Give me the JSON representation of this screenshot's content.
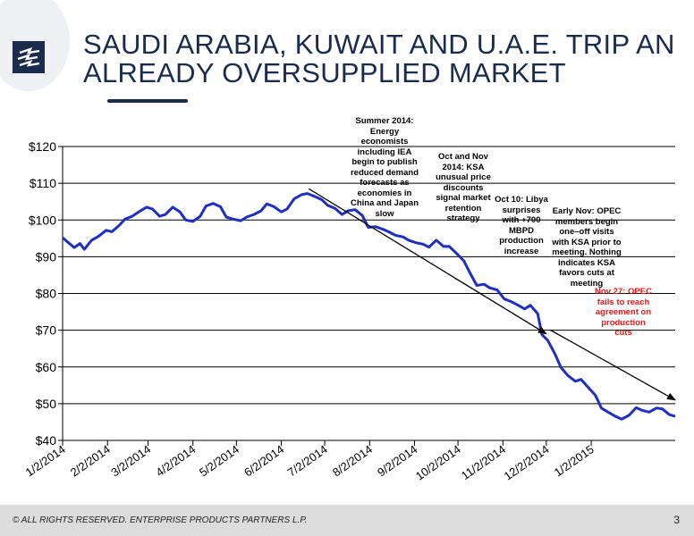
{
  "title": "SAUDI ARABIA, KUWAIT AND U.A.E. TRIP AN ALREADY OVERSUPPLIED MARKET",
  "footer": {
    "copyright": "© ALL RIGHTS RESERVED. ENTERPRISE PRODUCTS PARTNERS L.P.",
    "page_number": "3"
  },
  "colors": {
    "series": "#1f2fbf",
    "title": "#1a2b4c",
    "highlight": "#e01b1b"
  },
  "chart_data": {
    "type": "line",
    "title": "",
    "xlabel": "",
    "ylabel": "",
    "ylim": [
      40,
      120
    ],
    "yticks": [
      40,
      50,
      60,
      70,
      80,
      90,
      100,
      110,
      120
    ],
    "ytick_labels": [
      "$40",
      "$50",
      "$60",
      "$70",
      "$80",
      "$90",
      "$100",
      "$110",
      "$120"
    ],
    "xlim": [
      "2014-01-02",
      "2015-03-01"
    ],
    "xticks": [
      "2014-01-02",
      "2014-02-02",
      "2014-03-02",
      "2014-04-02",
      "2014-05-02",
      "2014-06-02",
      "2014-07-02",
      "2014-08-02",
      "2014-09-02",
      "2014-10-02",
      "2014-11-02",
      "2014-12-02",
      "2015-01-02"
    ],
    "xtick_labels": [
      "1/2/2014",
      "2/2/2014",
      "3/2/2014",
      "4/2/2014",
      "5/2/2014",
      "6/2/2014",
      "7/2/2014",
      "8/2/2014",
      "9/2/2014",
      "10/2/2014",
      "11/2/2014",
      "12/2/2014",
      "1/2/2015"
    ],
    "grid": "horizontal",
    "series": [
      {
        "x": [
          "2014-01-02",
          "2014-01-06",
          "2014-01-10",
          "2014-01-14",
          "2014-01-17",
          "2014-01-22",
          "2014-01-27",
          "2014-02-01",
          "2014-02-05",
          "2014-02-10",
          "2014-02-14",
          "2014-02-19",
          "2014-02-24",
          "2014-03-01",
          "2014-03-05",
          "2014-03-10",
          "2014-03-14",
          "2014-03-19",
          "2014-03-24",
          "2014-03-28",
          "2014-04-02",
          "2014-04-07",
          "2014-04-11",
          "2014-04-16",
          "2014-04-21",
          "2014-04-25",
          "2014-04-30",
          "2014-05-05",
          "2014-05-09",
          "2014-05-14",
          "2014-05-19",
          "2014-05-23",
          "2014-05-28",
          "2014-06-02",
          "2014-06-06",
          "2014-06-11",
          "2014-06-16",
          "2014-06-20",
          "2014-06-25",
          "2014-06-30",
          "2014-07-04",
          "2014-07-09",
          "2014-07-14",
          "2014-07-18",
          "2014-07-23",
          "2014-07-28",
          "2014-08-01",
          "2014-08-06",
          "2014-08-11",
          "2014-08-15",
          "2014-08-20",
          "2014-08-25",
          "2014-08-29",
          "2014-09-03",
          "2014-09-08",
          "2014-09-12",
          "2014-09-17",
          "2014-09-22",
          "2014-09-26",
          "2014-10-01",
          "2014-10-06",
          "2014-10-10",
          "2014-10-15",
          "2014-10-20",
          "2014-10-24",
          "2014-10-29",
          "2014-11-03",
          "2014-11-07",
          "2014-11-12",
          "2014-11-17",
          "2014-11-21",
          "2014-11-26",
          "2014-11-29",
          "2014-12-03",
          "2014-12-08",
          "2014-12-12",
          "2014-12-17",
          "2014-12-22",
          "2014-12-26",
          "2014-12-31",
          "2015-01-05",
          "2015-01-09",
          "2015-01-14",
          "2015-01-19",
          "2015-01-23",
          "2015-01-28",
          "2015-02-02",
          "2015-02-06",
          "2015-02-11",
          "2015-02-16",
          "2015-02-20",
          "2015-02-25",
          "2015-03-01"
        ],
        "y": [
          95.2,
          93.8,
          92.5,
          93.6,
          92.0,
          94.5,
          95.6,
          97.2,
          96.8,
          98.5,
          100.2,
          101.0,
          102.3,
          103.5,
          103.0,
          101.0,
          101.5,
          103.5,
          102.2,
          100.0,
          99.6,
          101.0,
          103.8,
          104.5,
          103.6,
          100.8,
          100.2,
          99.8,
          100.8,
          101.5,
          102.5,
          104.4,
          103.6,
          102.2,
          103.0,
          105.8,
          106.9,
          107.2,
          106.4,
          105.5,
          104.0,
          103.2,
          101.5,
          102.5,
          102.8,
          101.2,
          98.0,
          98.2,
          97.5,
          96.8,
          95.8,
          95.4,
          94.5,
          93.8,
          93.4,
          92.6,
          94.5,
          92.8,
          92.8,
          90.9,
          88.9,
          85.8,
          82.2,
          82.5,
          81.5,
          81.0,
          78.5,
          77.9,
          76.9,
          75.8,
          76.8,
          74.5,
          68.8,
          67.2,
          63.5,
          59.9,
          57.6,
          56.1,
          56.6,
          54.4,
          52.2,
          48.8,
          47.6,
          46.5,
          45.8,
          46.8,
          48.9,
          48.2,
          47.7,
          48.8,
          48.6,
          47.0,
          46.6
        ]
      }
    ],
    "annotations": [
      {
        "text": "Summer 2014: Energy economists including IEA begin to publish reduced demand forecasts as economies in China and Japan slow"
      },
      {
        "text": "Oct and Nov 2014: KSA unusual price discounts signal market retention strategy"
      },
      {
        "text": "Oct 10: Libya surprises with +700 MBPD production increase"
      },
      {
        "text": "Early Nov: OPEC members begin one–off visits with KSA prior to meeting. Nothing indicates KSA favors cuts at meeting"
      },
      {
        "text": "Nov 27: OPEC fails to reach agreement on production cuts",
        "color": "red"
      }
    ],
    "arrows": [
      {
        "from": [
          "2014-06-21",
          108.5
        ],
        "to": [
          "2014-12-02",
          69.0
        ]
      },
      {
        "from": [
          "2014-12-05",
          70.0
        ],
        "to": [
          "2015-03-01",
          51.0
        ]
      }
    ]
  }
}
